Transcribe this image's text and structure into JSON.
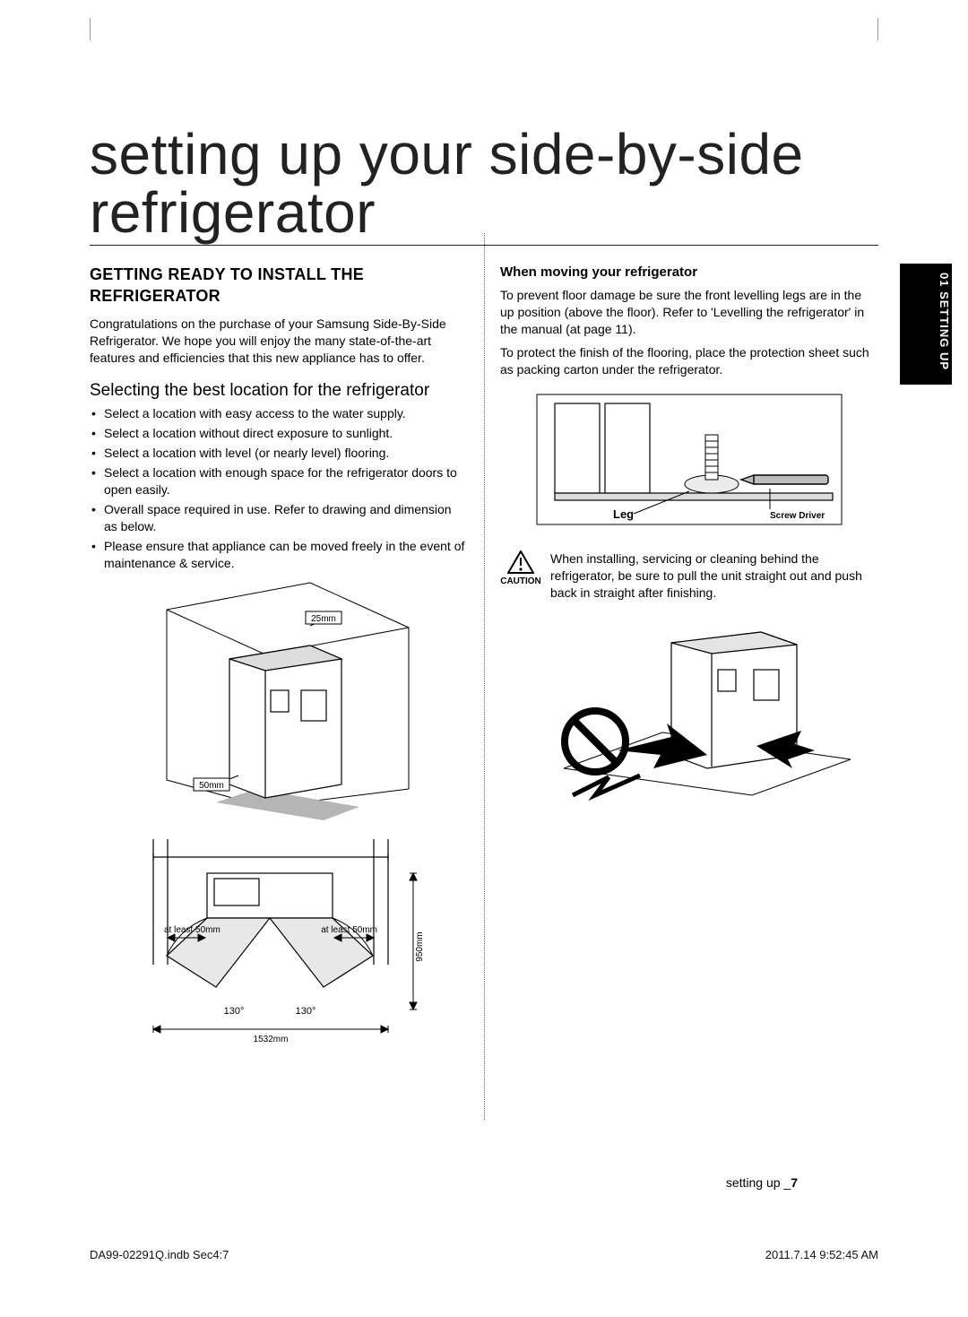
{
  "colors": {
    "text": "#000000",
    "title": "#222222",
    "rule": "#222222",
    "tab_bg": "#000000",
    "tab_text": "#ffffff",
    "dotted_divider": "#666666",
    "caution_triangle": "#000000",
    "prohibit_red": "#000000"
  },
  "title": "setting up your side-by-side refrigerator",
  "sideTab": "01 SETTING UP",
  "left": {
    "heading": "GETTING READY TO INSTALL THE REFRIGERATOR",
    "intro": "Congratulations on the purchase of your Samsung Side-By-Side Refrigerator. We hope you will enjoy the many state-of-the-art features and efficiencies that this new appliance has to offer.",
    "subheading": "Selecting the best location for the refrigerator",
    "bullets": [
      "Select a location with easy access to the water supply.",
      "Select a location without direct exposure to sunlight.",
      "Select a location with level (or nearly level) flooring.",
      "Select a location with enough space for the refrigerator doors to open easily.",
      "Overall space required in use. Refer to drawing and dimension as below.",
      "Please ensure that appliance can be moved freely in the event of maintenance & service."
    ],
    "fig_iso": {
      "label_top_clearance": "25mm",
      "label_front_clearance": "50mm"
    },
    "fig_plan": {
      "side_clearance_left": "at least 50mm",
      "side_clearance_right": "at least 50mm",
      "door_angle_left": "130°",
      "door_angle_right": "130°",
      "height_dim": "950mm",
      "width_dim": "1532mm"
    }
  },
  "right": {
    "subheading": "When moving your refrigerator",
    "para1": "To prevent floor damage be sure the front levelling legs are in the up position (above the floor). Refer to 'Levelling the refrigerator' in the manual (at page 11).",
    "para2": "To protect the finish of the flooring, place the protection sheet  such as packing carton under the refrigerator.",
    "fig_leg": {
      "label_leg": "Leg",
      "label_driver": "Screw Driver"
    },
    "caution_label": "CAUTION",
    "caution_text": "When installing, servicing or cleaning behind the refrigerator, be sure to pull the unit straight out and push back in straight after finishing."
  },
  "footer": {
    "section_label": "setting up _",
    "page_no": "7"
  },
  "printMeta": {
    "file": "DA99-02291Q.indb   Sec4:7",
    "timestamp": "2011.7.14   9:52:45 AM"
  }
}
